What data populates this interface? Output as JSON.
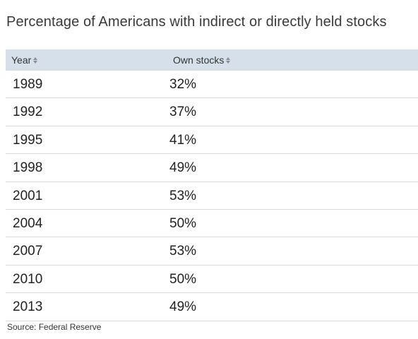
{
  "chart_data": {
    "type": "table",
    "title": "Percentage of Americans with indirect or directly held stocks",
    "columns": [
      "Year",
      "Own stocks"
    ],
    "rows": [
      [
        "1989",
        "32%"
      ],
      [
        "1992",
        "37%"
      ],
      [
        "1995",
        "41%"
      ],
      [
        "1998",
        "49%"
      ],
      [
        "2001",
        "53%"
      ],
      [
        "2004",
        "50%"
      ],
      [
        "2007",
        "53%"
      ],
      [
        "2010",
        "50%"
      ],
      [
        "2013",
        "49%"
      ]
    ],
    "source": "Source: Federal Reserve"
  },
  "colors": {
    "header_background": "#d6e0ea",
    "row_divider": "#d9d9d9",
    "sort_icon": "#8a8f96"
  },
  "icons": {
    "sort": "sort-icon"
  }
}
